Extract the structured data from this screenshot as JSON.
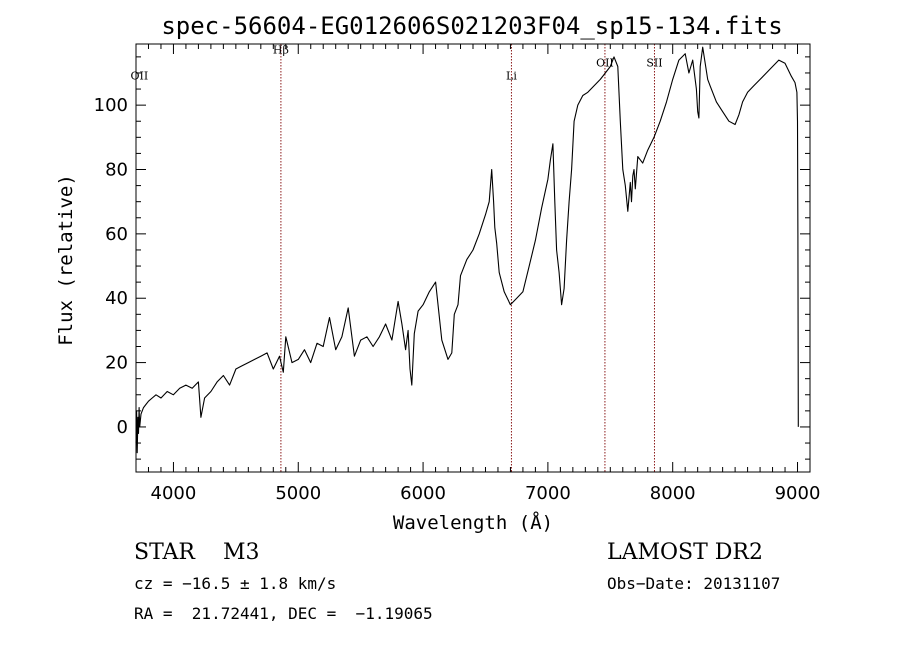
{
  "chart_data": {
    "type": "line",
    "title": "spec-56604-EG012606S021203F04_sp15-134.fits",
    "xlabel": "Wavelength (Å)",
    "ylabel": "Flux (relative)",
    "xlim": [
      3700,
      9100
    ],
    "ylim": [
      -14,
      119
    ],
    "xticks": [
      4000,
      5000,
      6000,
      7000,
      8000,
      9000
    ],
    "xtick_labels": [
      "4000",
      "5000",
      "6000",
      "7000",
      "8000",
      "9000"
    ],
    "yticks": [
      0,
      20,
      40,
      60,
      80,
      100
    ],
    "ytick_labels": [
      "0",
      "20",
      "40",
      "60",
      "80",
      "100"
    ],
    "grid": false,
    "line_color": "#000000",
    "marker_color": "#8b1a1a",
    "series": [
      {
        "x": [
          3700,
          3705,
          3710,
          3715,
          3720,
          3725,
          3730,
          3740,
          3760,
          3780,
          3800,
          3830,
          3860,
          3900,
          3950,
          4000,
          4050,
          4100,
          4150,
          4200,
          4220,
          4250,
          4300,
          4350,
          4400,
          4450,
          4500,
          4550,
          4600,
          4650,
          4700,
          4750,
          4800,
          4850,
          4880,
          4900,
          4950,
          5000,
          5050,
          5100,
          5150,
          5200,
          5250,
          5300,
          5350,
          5400,
          5450,
          5500,
          5550,
          5600,
          5650,
          5700,
          5750,
          5800,
          5830,
          5860,
          5880,
          5895,
          5910,
          5930,
          5960,
          6000,
          6050,
          6100,
          6150,
          6200,
          6230,
          6250,
          6280,
          6300,
          6350,
          6400,
          6450,
          6500,
          6530,
          6550,
          6565,
          6575,
          6590,
          6610,
          6650,
          6700,
          6750,
          6800,
          6850,
          6900,
          6950,
          7000,
          7020,
          7040,
          7055,
          7070,
          7090,
          7110,
          7130,
          7150,
          7170,
          7190,
          7210,
          7240,
          7280,
          7320,
          7370,
          7420,
          7460,
          7500,
          7530,
          7560,
          7580,
          7600,
          7620,
          7640,
          7660,
          7670,
          7680,
          7690,
          7700,
          7720,
          7760,
          7800,
          7850,
          7900,
          7950,
          8000,
          8050,
          8100,
          8130,
          8160,
          8190,
          8200,
          8210,
          8220,
          8240,
          8260,
          8280,
          8300,
          8350,
          8400,
          8450,
          8500,
          8530,
          8560,
          8600,
          8650,
          8700,
          8750,
          8800,
          8850,
          8900,
          8950,
          8980,
          8995,
          9000,
          9003,
          9006
        ],
        "values": [
          -5,
          5,
          -8,
          3,
          -2,
          6,
          0,
          4,
          6,
          7,
          8,
          9,
          10,
          9,
          11,
          10,
          12,
          13,
          12,
          14,
          3,
          9,
          11,
          14,
          16,
          13,
          18,
          19,
          20,
          21,
          22,
          23,
          18,
          22,
          17,
          28,
          20,
          21,
          24,
          20,
          26,
          25,
          34,
          24,
          28,
          37,
          22,
          27,
          28,
          25,
          28,
          32,
          27,
          39,
          32,
          24,
          30,
          18,
          13,
          29,
          36,
          38,
          42,
          45,
          27,
          21,
          23,
          35,
          38,
          47,
          52,
          55,
          60,
          66,
          70,
          80,
          70,
          62,
          57,
          48,
          42,
          38,
          40,
          42,
          50,
          58,
          68,
          77,
          83,
          88,
          70,
          55,
          48,
          38,
          43,
          58,
          70,
          80,
          95,
          100,
          103,
          104,
          106,
          108,
          110,
          112,
          115,
          112,
          95,
          80,
          75,
          67,
          76,
          70,
          78,
          80,
          74,
          84,
          82,
          86,
          90,
          95,
          101,
          108,
          114,
          116,
          110,
          114,
          105,
          98,
          96,
          112,
          118,
          113,
          108,
          106,
          101,
          98,
          95,
          94,
          97,
          101,
          104,
          106,
          108,
          110,
          112,
          114,
          113,
          109,
          107,
          104,
          95,
          60,
          0
        ]
      }
    ],
    "spectral_lines": [
      {
        "label": "OII",
        "x": 3727,
        "label_y": 108,
        "draw_line": false
      },
      {
        "label": "Hβ",
        "x": 4861,
        "label_y": 116,
        "draw_line": true
      },
      {
        "label": "Li",
        "x": 6708,
        "label_y": 108,
        "draw_line": true
      },
      {
        "label": "OII",
        "x": 7457,
        "label_y": 112,
        "draw_line": true
      },
      {
        "label": "SII",
        "x": 7854,
        "label_y": 112,
        "draw_line": true
      }
    ]
  },
  "info": {
    "class_text": "STAR    M3",
    "survey": "LAMOST DR2",
    "cz": "cz = −16.5 ± 1.8 km/s",
    "obs_date": "Obs−Date: 20131107",
    "radec": "RA =  21.72441, DEC =  −1.19065"
  }
}
